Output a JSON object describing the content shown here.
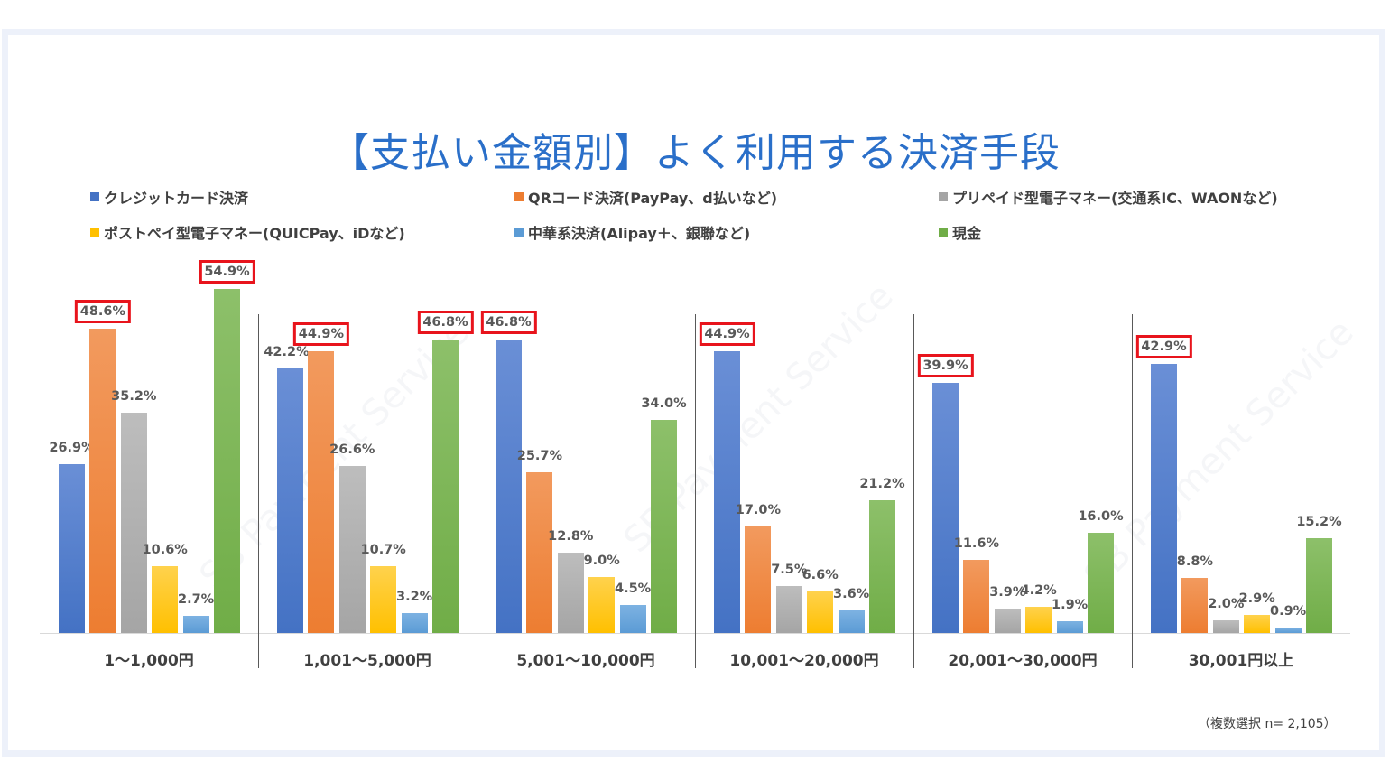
{
  "title": "【支払い金額別】よく利用する決済手段",
  "note": "（複数選択 n= 2,105）",
  "watermark": "SB Payment Service",
  "colors": {
    "frame_border": "#edf1fa",
    "title": "#2a6fc9",
    "highlight_box": "#e8141c"
  },
  "legend": [
    {
      "label": "クレジットカード決済",
      "color": "#4472c4"
    },
    {
      "label": "QRコード決済(PayPay、d払いなど)",
      "color": "#ed7d31"
    },
    {
      "label": "プリペイド型電子マネー(交通系IC、WAONなど)",
      "color": "#a5a5a5"
    },
    {
      "label": "ポストペイ型電子マネー(QUICPay、iDなど)",
      "color": "#ffc000"
    },
    {
      "label": "中華系決済(Alipay＋、銀聯など)",
      "color": "#5b9bd5"
    },
    {
      "label": "現金",
      "color": "#70ad47"
    }
  ],
  "chart_data": {
    "type": "bar",
    "title": "【支払い金額別】よく利用する決済手段",
    "xlabel": "",
    "ylabel": "",
    "ylim": [
      0,
      55
    ],
    "grid": false,
    "legend_position": "top",
    "categories": [
      "1～1,000円",
      "1,001～5,000円",
      "5,001～10,000円",
      "10,001～20,000円",
      "20,001～30,000円",
      "30,001円以上"
    ],
    "series": [
      {
        "name": "クレジットカード決済",
        "values": [
          26.9,
          42.2,
          46.8,
          44.9,
          39.9,
          42.9
        ]
      },
      {
        "name": "QRコード決済(PayPay、d払いなど)",
        "values": [
          48.6,
          44.9,
          25.7,
          17.0,
          11.6,
          8.8
        ]
      },
      {
        "name": "プリペイド型電子マネー(交通系IC、WAONなど)",
        "values": [
          35.2,
          26.6,
          12.8,
          7.5,
          3.9,
          2.0
        ]
      },
      {
        "name": "ポストペイ型電子マネー(QUICPay、iDなど)",
        "values": [
          10.6,
          10.7,
          9.0,
          6.6,
          4.2,
          2.9
        ]
      },
      {
        "name": "中華系決済(Alipay＋、銀聯など)",
        "values": [
          2.7,
          3.2,
          4.5,
          3.6,
          1.9,
          0.9
        ]
      },
      {
        "name": "現金",
        "values": [
          54.9,
          46.8,
          34.0,
          21.2,
          16.0,
          15.2
        ]
      }
    ],
    "annotations": {
      "highlighted_labels": [
        {
          "category": "1～1,000円",
          "series": "QRコード決済(PayPay、d払いなど)",
          "value": "48.6%"
        },
        {
          "category": "1～1,000円",
          "series": "現金",
          "value": "54.9%"
        },
        {
          "category": "1,001～5,000円",
          "series": "QRコード決済(PayPay、d払いなど)",
          "value": "44.9%"
        },
        {
          "category": "1,001～5,000円",
          "series": "現金",
          "value": "46.8%"
        },
        {
          "category": "5,001～10,000円",
          "series": "クレジットカード決済",
          "value": "46.8%"
        },
        {
          "category": "10,001～20,000円",
          "series": "クレジットカード決済",
          "value": "44.9%"
        },
        {
          "category": "20,001～30,000円",
          "series": "クレジットカード決済",
          "value": "39.9%"
        },
        {
          "category": "30,001円以上",
          "series": "クレジットカード決済",
          "value": "42.9%"
        }
      ],
      "note": "（複数選択 n= 2,105）"
    },
    "highlight": [
      [
        false,
        true,
        false,
        false,
        false,
        true
      ],
      [
        false,
        true,
        false,
        false,
        false,
        true
      ],
      [
        true,
        false,
        false,
        false,
        false,
        false
      ],
      [
        true,
        false,
        false,
        false,
        false,
        false
      ],
      [
        true,
        false,
        false,
        false,
        false,
        false
      ],
      [
        true,
        false,
        false,
        false,
        false,
        false
      ]
    ]
  }
}
